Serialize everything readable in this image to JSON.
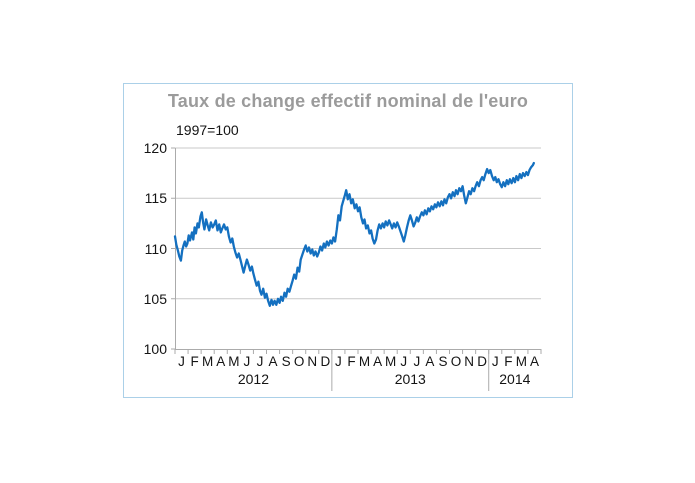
{
  "card": {
    "title": "Taux de change effectif nominal de l'euro",
    "subtitle": "1997=100"
  },
  "colors": {
    "card_border": "#abd0e8",
    "title_text": "#9b9b9b",
    "axis_text": "#141414"
  },
  "chart_data": {
    "type": "line",
    "title": "Taux de change effectif nominal de l'euro",
    "subtitle": "1997=100",
    "grid": true,
    "legend": "none",
    "line_color": "#1470c0",
    "grid_color": "#c9c9c9",
    "axis_color": "#ababab",
    "y_axis": {
      "min": 100,
      "max": 120,
      "ticks": [
        100,
        105,
        110,
        115,
        120
      ]
    },
    "x_axis": {
      "unit": "month",
      "start_label": "J",
      "month_letters": [
        "J",
        "F",
        "M",
        "A",
        "M",
        "J",
        "J",
        "A",
        "S",
        "O",
        "N",
        "D"
      ],
      "years": [
        {
          "label": "2012",
          "months": 12
        },
        {
          "label": "2013",
          "months": 12
        },
        {
          "label": "2014",
          "months": 4
        }
      ],
      "total_months": 28
    },
    "series": [
      {
        "name": "Taux de change effectif nominal de l'euro (1997=100)",
        "points": [
          [
            0.0,
            111.2
          ],
          [
            0.1,
            110.4
          ],
          [
            0.22,
            109.8
          ],
          [
            0.33,
            109.2
          ],
          [
            0.45,
            108.8
          ],
          [
            0.55,
            109.8
          ],
          [
            0.65,
            110.3
          ],
          [
            0.75,
            110.7
          ],
          [
            0.85,
            110.2
          ],
          [
            0.95,
            110.5
          ],
          [
            1.05,
            111.3
          ],
          [
            1.15,
            110.8
          ],
          [
            1.3,
            111.6
          ],
          [
            1.4,
            110.9
          ],
          [
            1.5,
            112.1
          ],
          [
            1.6,
            111.5
          ],
          [
            1.72,
            112.5
          ],
          [
            1.82,
            112.1
          ],
          [
            1.95,
            113.2
          ],
          [
            2.05,
            113.6
          ],
          [
            2.15,
            112.6
          ],
          [
            2.25,
            111.9
          ],
          [
            2.38,
            112.9
          ],
          [
            2.5,
            112.3
          ],
          [
            2.62,
            111.8
          ],
          [
            2.75,
            112.6
          ],
          [
            2.88,
            112.1
          ],
          [
            3.0,
            112.4
          ],
          [
            3.12,
            112.8
          ],
          [
            3.25,
            111.8
          ],
          [
            3.38,
            112.4
          ],
          [
            3.5,
            111.6
          ],
          [
            3.62,
            112.0
          ],
          [
            3.75,
            112.4
          ],
          [
            3.88,
            111.9
          ],
          [
            4.0,
            112.1
          ],
          [
            4.12,
            111.2
          ],
          [
            4.25,
            110.6
          ],
          [
            4.38,
            111.0
          ],
          [
            4.5,
            110.2
          ],
          [
            4.62,
            109.6
          ],
          [
            4.75,
            109.1
          ],
          [
            4.88,
            109.5
          ],
          [
            5.0,
            108.9
          ],
          [
            5.12,
            108.3
          ],
          [
            5.25,
            107.6
          ],
          [
            5.38,
            108.3
          ],
          [
            5.5,
            108.9
          ],
          [
            5.62,
            108.4
          ],
          [
            5.75,
            107.8
          ],
          [
            5.88,
            108.2
          ],
          [
            6.0,
            107.5
          ],
          [
            6.12,
            106.9
          ],
          [
            6.25,
            106.3
          ],
          [
            6.38,
            106.7
          ],
          [
            6.5,
            105.8
          ],
          [
            6.62,
            105.4
          ],
          [
            6.75,
            106.0
          ],
          [
            6.88,
            105.1
          ],
          [
            7.0,
            105.5
          ],
          [
            7.12,
            104.8
          ],
          [
            7.25,
            104.3
          ],
          [
            7.38,
            104.9
          ],
          [
            7.5,
            104.4
          ],
          [
            7.62,
            104.8
          ],
          [
            7.75,
            104.4
          ],
          [
            7.88,
            105.0
          ],
          [
            8.0,
            104.6
          ],
          [
            8.12,
            105.2
          ],
          [
            8.25,
            104.8
          ],
          [
            8.38,
            105.6
          ],
          [
            8.5,
            105.2
          ],
          [
            8.62,
            106.0
          ],
          [
            8.75,
            105.7
          ],
          [
            8.88,
            106.3
          ],
          [
            9.0,
            106.8
          ],
          [
            9.12,
            107.4
          ],
          [
            9.25,
            107.0
          ],
          [
            9.38,
            108.1
          ],
          [
            9.5,
            107.7
          ],
          [
            9.62,
            108.9
          ],
          [
            9.75,
            109.4
          ],
          [
            9.88,
            109.9
          ],
          [
            10.0,
            110.3
          ],
          [
            10.12,
            109.7
          ],
          [
            10.25,
            110.1
          ],
          [
            10.38,
            109.5
          ],
          [
            10.5,
            109.9
          ],
          [
            10.62,
            109.3
          ],
          [
            10.75,
            109.7
          ],
          [
            10.88,
            109.2
          ],
          [
            11.0,
            109.6
          ],
          [
            11.12,
            110.2
          ],
          [
            11.25,
            109.8
          ],
          [
            11.38,
            110.5
          ],
          [
            11.5,
            110.1
          ],
          [
            11.62,
            110.7
          ],
          [
            11.75,
            110.3
          ],
          [
            11.88,
            110.8
          ],
          [
            12.0,
            110.5
          ],
          [
            12.12,
            111.1
          ],
          [
            12.25,
            110.7
          ],
          [
            12.38,
            111.9
          ],
          [
            12.5,
            113.3
          ],
          [
            12.62,
            112.8
          ],
          [
            12.75,
            114.2
          ],
          [
            12.88,
            114.8
          ],
          [
            13.0,
            115.3
          ],
          [
            13.1,
            115.8
          ],
          [
            13.22,
            114.9
          ],
          [
            13.35,
            115.4
          ],
          [
            13.48,
            114.5
          ],
          [
            13.6,
            114.9
          ],
          [
            13.75,
            114.0
          ],
          [
            13.88,
            114.4
          ],
          [
            14.0,
            113.7
          ],
          [
            14.12,
            114.1
          ],
          [
            14.25,
            113.1
          ],
          [
            14.38,
            112.5
          ],
          [
            14.5,
            112.9
          ],
          [
            14.62,
            112.0
          ],
          [
            14.75,
            112.3
          ],
          [
            14.88,
            111.5
          ],
          [
            15.0,
            111.8
          ],
          [
            15.12,
            111.0
          ],
          [
            15.25,
            110.5
          ],
          [
            15.38,
            110.9
          ],
          [
            15.5,
            111.8
          ],
          [
            15.62,
            112.4
          ],
          [
            15.75,
            112.0
          ],
          [
            15.88,
            112.5
          ],
          [
            16.0,
            112.1
          ],
          [
            16.12,
            112.7
          ],
          [
            16.25,
            112.3
          ],
          [
            16.38,
            112.8
          ],
          [
            16.5,
            112.4
          ],
          [
            16.62,
            112.0
          ],
          [
            16.75,
            112.5
          ],
          [
            16.88,
            112.1
          ],
          [
            17.0,
            112.6
          ],
          [
            17.12,
            112.2
          ],
          [
            17.25,
            111.7
          ],
          [
            17.38,
            111.2
          ],
          [
            17.5,
            110.7
          ],
          [
            17.62,
            111.3
          ],
          [
            17.75,
            112.1
          ],
          [
            17.88,
            112.8
          ],
          [
            18.0,
            113.3
          ],
          [
            18.12,
            112.8
          ],
          [
            18.25,
            112.2
          ],
          [
            18.38,
            112.6
          ],
          [
            18.5,
            113.1
          ],
          [
            18.62,
            112.7
          ],
          [
            18.75,
            113.2
          ],
          [
            18.88,
            113.6
          ],
          [
            19.0,
            113.3
          ],
          [
            19.12,
            113.8
          ],
          [
            19.25,
            113.4
          ],
          [
            19.38,
            114.0
          ],
          [
            19.5,
            113.7
          ],
          [
            19.62,
            114.2
          ],
          [
            19.75,
            113.9
          ],
          [
            19.88,
            114.4
          ],
          [
            20.0,
            114.1
          ],
          [
            20.12,
            114.6
          ],
          [
            20.25,
            114.2
          ],
          [
            20.38,
            114.7
          ],
          [
            20.5,
            114.3
          ],
          [
            20.62,
            114.9
          ],
          [
            20.75,
            114.5
          ],
          [
            20.88,
            115.1
          ],
          [
            21.0,
            115.4
          ],
          [
            21.12,
            115.0
          ],
          [
            21.25,
            115.6
          ],
          [
            21.38,
            115.2
          ],
          [
            21.5,
            115.8
          ],
          [
            21.62,
            115.4
          ],
          [
            21.75,
            116.0
          ],
          [
            21.88,
            115.7
          ],
          [
            22.0,
            116.2
          ],
          [
            22.12,
            115.3
          ],
          [
            22.25,
            114.5
          ],
          [
            22.38,
            115.1
          ],
          [
            22.5,
            115.7
          ],
          [
            22.62,
            115.4
          ],
          [
            22.75,
            116.0
          ],
          [
            22.88,
            115.7
          ],
          [
            23.0,
            116.2
          ],
          [
            23.12,
            116.6
          ],
          [
            23.25,
            116.2
          ],
          [
            23.38,
            116.8
          ],
          [
            23.5,
            117.1
          ],
          [
            23.62,
            116.8
          ],
          [
            23.75,
            117.4
          ],
          [
            23.88,
            117.9
          ],
          [
            24.0,
            117.5
          ],
          [
            24.12,
            117.8
          ],
          [
            24.25,
            117.2
          ],
          [
            24.38,
            116.8
          ],
          [
            24.5,
            117.1
          ],
          [
            24.62,
            116.6
          ],
          [
            24.75,
            116.9
          ],
          [
            24.88,
            116.4
          ],
          [
            25.0,
            116.1
          ],
          [
            25.12,
            116.6
          ],
          [
            25.25,
            116.2
          ],
          [
            25.38,
            116.8
          ],
          [
            25.5,
            116.4
          ],
          [
            25.62,
            116.9
          ],
          [
            25.75,
            116.5
          ],
          [
            25.88,
            117.0
          ],
          [
            26.0,
            116.6
          ],
          [
            26.12,
            117.2
          ],
          [
            26.25,
            116.8
          ],
          [
            26.38,
            117.4
          ],
          [
            26.5,
            117.0
          ],
          [
            26.62,
            117.5
          ],
          [
            26.75,
            117.2
          ],
          [
            26.88,
            117.6
          ],
          [
            27.0,
            117.3
          ],
          [
            27.12,
            117.8
          ],
          [
            27.25,
            118.1
          ],
          [
            27.38,
            118.3
          ],
          [
            27.45,
            118.5
          ]
        ]
      }
    ]
  }
}
